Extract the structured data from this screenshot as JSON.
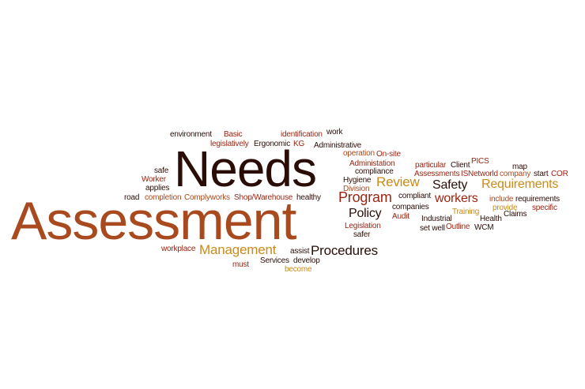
{
  "colors": {
    "dark": "#2b0d07",
    "red": "#9b2412",
    "orange": "#c98a1a",
    "rust": "#a8491e",
    "background": "#ffffff"
  },
  "words": {
    "needs": "Needs",
    "assessment": "Assessment",
    "management": "Management",
    "procedures": "Procedures",
    "program": "Program",
    "policy": "Policy",
    "review": "Review",
    "workers": "workers",
    "safety": "Safety",
    "requirements_big": "Requirements",
    "environment": "environment",
    "basic": "Basic",
    "identification": "identification",
    "work": "work",
    "legislatively": "legislatively",
    "ergonomic": "Ergonomic",
    "kg": "KG",
    "administrative": "Administrative",
    "operation": "operation",
    "on_site": "On-site",
    "safe": "safe",
    "administation": "Administation",
    "worker": "Worker",
    "compliance": "compliance",
    "hygiene": "Hygiene",
    "applies": "applies",
    "division": "Division",
    "particular": "particular",
    "client": "Client",
    "pics": "PICS",
    "map": "map",
    "assessments": "Assessments",
    "isnetworld": "ISNetworld",
    "company": "company",
    "start": "start",
    "cor": "COR",
    "road": "road",
    "completion": "completion",
    "complyworks": "Complyworks",
    "shop_warehouse": "Shop/Warehouse",
    "healthy": "healthy",
    "compliant": "compliant",
    "include": "include",
    "requirements_small": "requirements",
    "companies": "companies",
    "training": "Training",
    "provide": "provide",
    "specific": "specific",
    "audit": "Audit",
    "industrial": "Industrial",
    "health": "Health",
    "claims": "Claims",
    "legislation": "Legislation",
    "outline": "Outline",
    "set_well": "set well",
    "wcm": "WCM",
    "safer": "safer",
    "workplace": "workplace",
    "assist": "assist",
    "services": "Services",
    "develop": "develop",
    "must": "must",
    "become": "become"
  }
}
